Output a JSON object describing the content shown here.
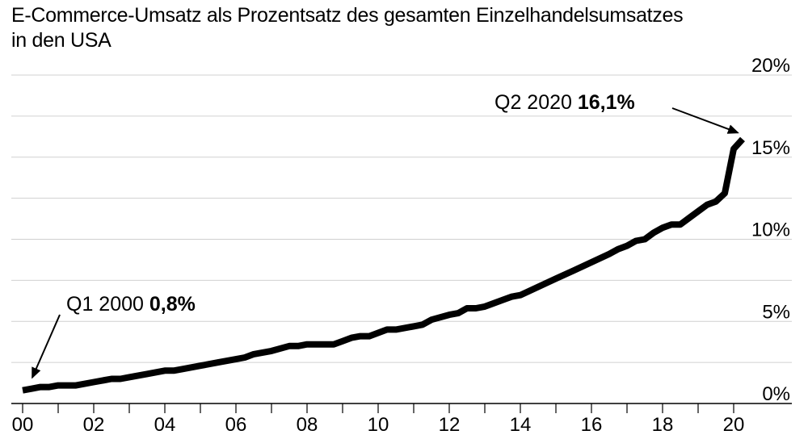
{
  "chart_data": {
    "type": "line",
    "title_line1": "E-Commerce-Umsatz als Prozentsatz des gesamten Einzelhandelsumsatzes",
    "title_line2": "in den USA",
    "xlabel": "",
    "ylabel": "",
    "xlim": [
      2000.0,
      2020.5
    ],
    "ylim": [
      0,
      20
    ],
    "y_ticks": [
      {
        "value": 0,
        "label": "0%"
      },
      {
        "value": 5,
        "label": "5%"
      },
      {
        "value": 10,
        "label": "10%"
      },
      {
        "value": 15,
        "label": "15%"
      },
      {
        "value": 20,
        "label": "20%"
      }
    ],
    "x_ticks": [
      {
        "value": 2000,
        "label": "00"
      },
      {
        "value": 2002,
        "label": "02"
      },
      {
        "value": 2004,
        "label": "04"
      },
      {
        "value": 2006,
        "label": "06"
      },
      {
        "value": 2008,
        "label": "08"
      },
      {
        "value": 2010,
        "label": "10"
      },
      {
        "value": 2012,
        "label": "12"
      },
      {
        "value": 2014,
        "label": "14"
      },
      {
        "value": 2016,
        "label": "16"
      },
      {
        "value": 2018,
        "label": "18"
      },
      {
        "value": 2020,
        "label": "20"
      }
    ],
    "grid": "horizontal",
    "series": [
      {
        "color": "#000000",
        "points": [
          [
            2000.0,
            0.8
          ],
          [
            2000.25,
            0.9
          ],
          [
            2000.5,
            1.0
          ],
          [
            2000.75,
            1.0
          ],
          [
            2001.0,
            1.1
          ],
          [
            2001.5,
            1.1
          ],
          [
            2002.0,
            1.3
          ],
          [
            2002.5,
            1.5
          ],
          [
            2002.75,
            1.5
          ],
          [
            2003.0,
            1.6
          ],
          [
            2003.5,
            1.8
          ],
          [
            2004.0,
            2.0
          ],
          [
            2004.25,
            2.0
          ],
          [
            2004.5,
            2.1
          ],
          [
            2005.0,
            2.3
          ],
          [
            2005.5,
            2.5
          ],
          [
            2006.0,
            2.7
          ],
          [
            2006.25,
            2.8
          ],
          [
            2006.5,
            3.0
          ],
          [
            2007.0,
            3.2
          ],
          [
            2007.5,
            3.5
          ],
          [
            2007.75,
            3.5
          ],
          [
            2008.0,
            3.6
          ],
          [
            2008.5,
            3.6
          ],
          [
            2008.75,
            3.6
          ],
          [
            2009.0,
            3.8
          ],
          [
            2009.25,
            4.0
          ],
          [
            2009.5,
            4.1
          ],
          [
            2009.75,
            4.1
          ],
          [
            2010.0,
            4.3
          ],
          [
            2010.25,
            4.5
          ],
          [
            2010.5,
            4.5
          ],
          [
            2011.0,
            4.7
          ],
          [
            2011.25,
            4.8
          ],
          [
            2011.5,
            5.1
          ],
          [
            2012.0,
            5.4
          ],
          [
            2012.25,
            5.5
          ],
          [
            2012.5,
            5.8
          ],
          [
            2012.75,
            5.8
          ],
          [
            2013.0,
            5.9
          ],
          [
            2013.5,
            6.3
          ],
          [
            2013.75,
            6.5
          ],
          [
            2014.0,
            6.6
          ],
          [
            2014.5,
            7.1
          ],
          [
            2015.0,
            7.6
          ],
          [
            2015.5,
            8.1
          ],
          [
            2016.0,
            8.6
          ],
          [
            2016.5,
            9.1
          ],
          [
            2016.75,
            9.4
          ],
          [
            2017.0,
            9.6
          ],
          [
            2017.25,
            9.9
          ],
          [
            2017.5,
            10.0
          ],
          [
            2017.75,
            10.4
          ],
          [
            2018.0,
            10.7
          ],
          [
            2018.25,
            10.9
          ],
          [
            2018.5,
            10.9
          ],
          [
            2018.75,
            11.3
          ],
          [
            2019.0,
            11.7
          ],
          [
            2019.25,
            12.1
          ],
          [
            2019.5,
            12.3
          ],
          [
            2019.75,
            12.8
          ],
          [
            2020.0,
            15.5
          ],
          [
            2020.25,
            16.1
          ]
        ]
      }
    ],
    "annotations": [
      {
        "text": "Q1 2000 ",
        "value_text": "0,8%",
        "x": 2000.0,
        "y": 0.8
      },
      {
        "text": "Q2 2020 ",
        "value_text": "16,1%",
        "x": 2020.25,
        "y": 16.1
      }
    ]
  }
}
